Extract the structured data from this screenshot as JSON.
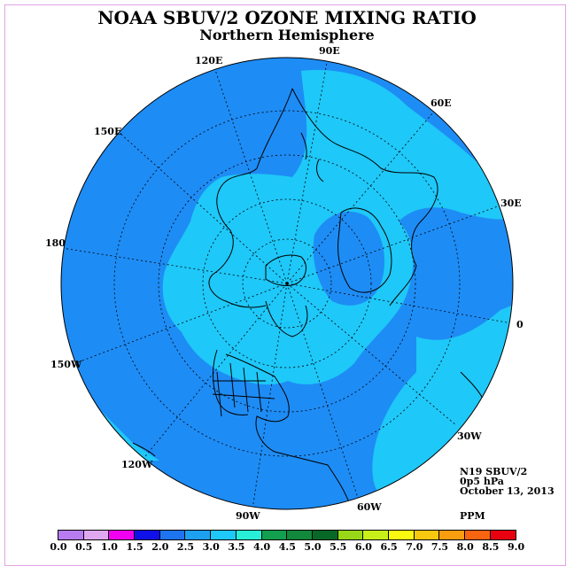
{
  "title": "NOAA SBUV/2 OZONE MIXING RATIO",
  "subtitle": "Northern Hemisphere",
  "longitude_labels": [
    "90E",
    "60E",
    "30E",
    "0",
    "30W",
    "60W",
    "90W",
    "120W",
    "150W",
    "180",
    "150E",
    "120E"
  ],
  "info": {
    "satellite": "N19 SBUV/2",
    "level": "0p5 hPa",
    "date": "October 13, 2013",
    "units": "PPM"
  },
  "colorbar": {
    "ticks": [
      "0.0",
      "0.5",
      "1.0",
      "1.5",
      "2.0",
      "2.5",
      "3.0",
      "3.5",
      "4.0",
      "4.5",
      "5.0",
      "5.5",
      "6.0",
      "6.5",
      "7.0",
      "7.5",
      "8.0",
      "8.5",
      "9.0"
    ],
    "colors": [
      "#b77cf0",
      "#e0a8f0",
      "#f000f0",
      "#1010e8",
      "#1e74f0",
      "#1ea0f0",
      "#1ec8f8",
      "#28f0d8",
      "#12a050",
      "#12883c",
      "#086828",
      "#98d818",
      "#c8f018",
      "#f8f810",
      "#f8c810",
      "#f89c10",
      "#f86410",
      "#e80010",
      "#7a4a30"
    ]
  },
  "map_colors": {
    "outer": "#1e8cf5",
    "inner": "#1ec8f8",
    "land": "#000000"
  }
}
